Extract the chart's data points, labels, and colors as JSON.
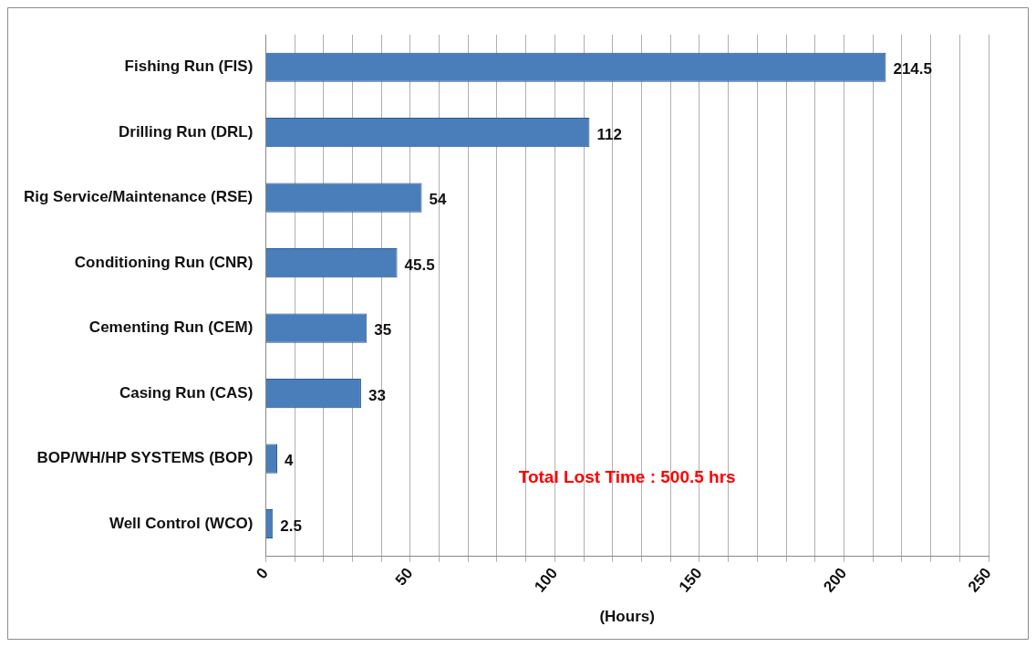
{
  "chart_data": {
    "type": "bar",
    "orientation": "horizontal",
    "xlabel": "(Hours)",
    "categories": [
      "Fishing Run (FIS)",
      "Drilling Run (DRL)",
      "Rig Service/Maintenance (RSE)",
      "Conditioning Run (CNR)",
      "Cementing Run (CEM)",
      "Casing Run (CAS)",
      "BOP/WH/HP SYSTEMS (BOP)",
      "Well Control (WCO)"
    ],
    "values": [
      214.5,
      112,
      54,
      45.5,
      35,
      33,
      4,
      2.5
    ],
    "color": "#4a7ebb",
    "xlim": [
      0,
      250
    ],
    "xticks": [
      0,
      {
        "value": 10,
        "label": null
      },
      {
        "value": 20,
        "label": null
      },
      {
        "value": 30,
        "label": null
      },
      {
        "value": 40,
        "label": null
      },
      50,
      {
        "value": 60,
        "label": null
      },
      {
        "value": 70,
        "label": null
      },
      {
        "value": 80,
        "label": null
      },
      {
        "value": 90,
        "label": null
      },
      100,
      {
        "value": 110,
        "label": null
      },
      {
        "value": 120,
        "label": null
      },
      {
        "value": 130,
        "label": null
      },
      {
        "value": 140,
        "label": null
      },
      150,
      {
        "value": 160,
        "label": null
      },
      {
        "value": 170,
        "label": null
      },
      {
        "value": 180,
        "label": null
      },
      {
        "value": 190,
        "label": null
      },
      200,
      {
        "value": 210,
        "label": null
      },
      {
        "value": 220,
        "label": null
      },
      {
        "value": 230,
        "label": null
      },
      {
        "value": 240,
        "label": null
      },
      250
    ],
    "grid": "x",
    "data_labels": true,
    "legend": false,
    "annotations": [
      "Total Lost Time : 500.5 hrs"
    ]
  }
}
